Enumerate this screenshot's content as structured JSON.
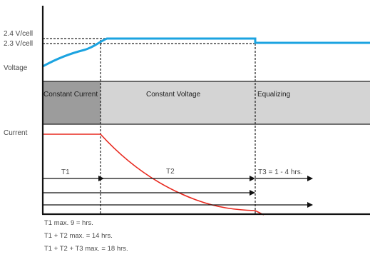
{
  "y_labels": {
    "v24": "2.4 V/cell",
    "v23": "2.3 V/cell",
    "voltage": "Voltage",
    "current": "Current"
  },
  "stages": [
    "Constant Current",
    "Constant Voltage",
    "Equalizing"
  ],
  "timers": {
    "t1": "T1",
    "t2": "T2",
    "t3": "T3 = 1 - 4 hrs."
  },
  "notes": [
    "T1 max. 9 = hrs.",
    "T1 + T2 max. = 14 hrs.",
    "T1 + T2 + T3 max. = 18 hrs."
  ],
  "colors": {
    "voltage_line": "#1ba3e0",
    "current_line": "#e8281e",
    "stage_cc": "#9c9c9c",
    "stage_cv_eq": "#d4d4d4",
    "axis": "#111111"
  }
}
